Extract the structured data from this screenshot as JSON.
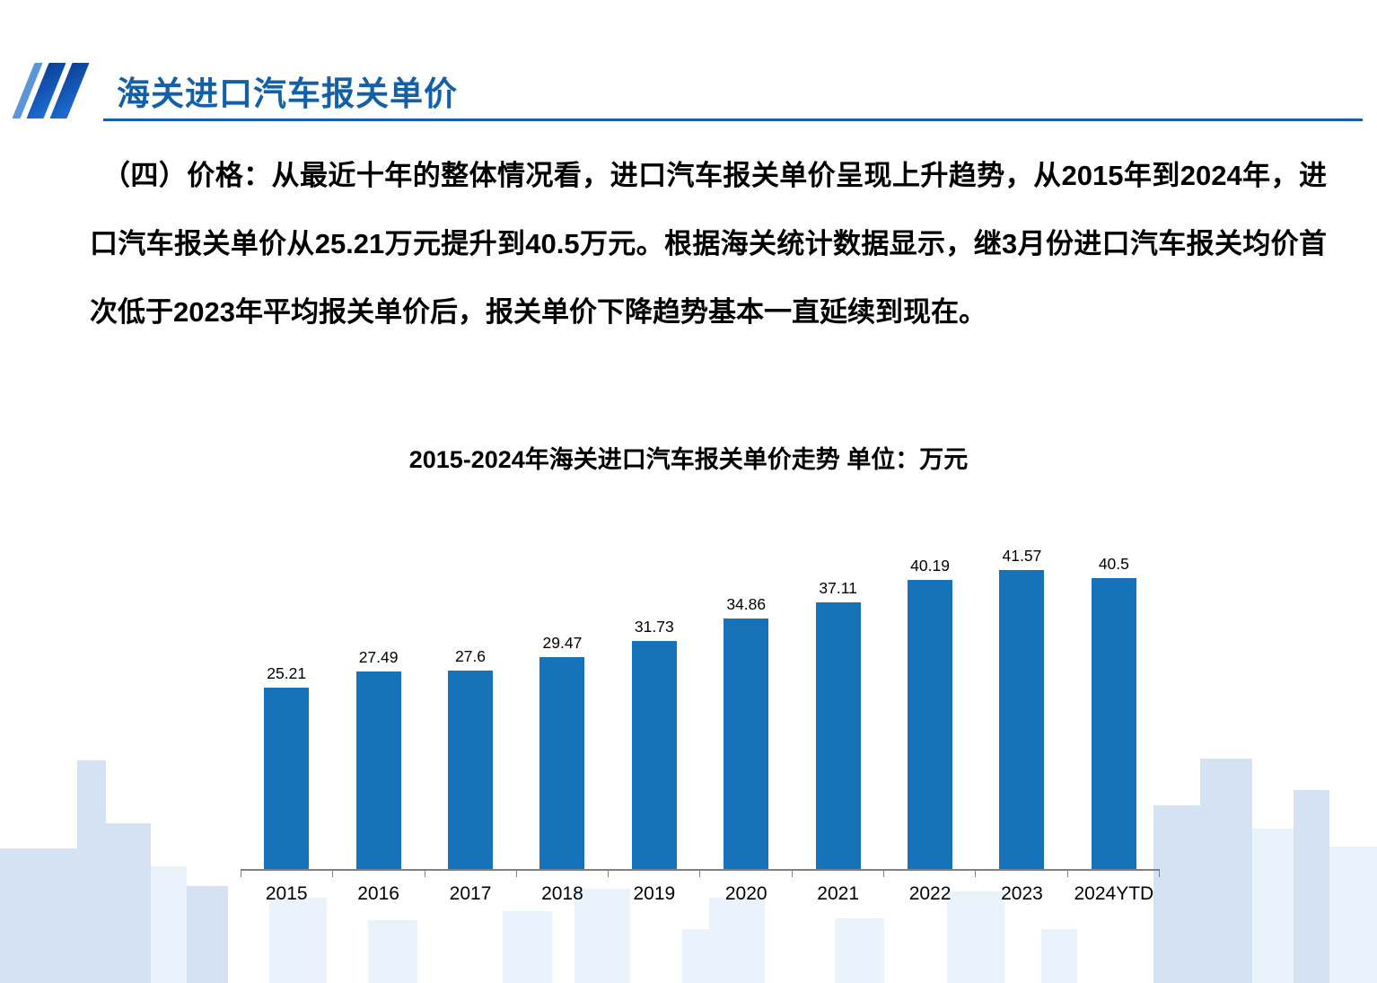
{
  "header": {
    "title": "海关进口汽车报关单价"
  },
  "body": {
    "paragraph": "（四）价格：从最近十年的整体情况看，进口汽车报关单价呈现上升趋势，从2015年到2024年，进口汽车报关单价从25.21万元提升到40.5万元。根据海关统计数据显示，继3月份进口汽车报关均价首次低于2023年平均报关单价后，报关单价下降趋势基本一直延续到现在。"
  },
  "chart_data": {
    "type": "bar",
    "title": "2015-2024年海关进口汽车报关单价走势  单位：万元",
    "categories": [
      "2015",
      "2016",
      "2017",
      "2018",
      "2019",
      "2020",
      "2021",
      "2022",
      "2023",
      "2024YTD"
    ],
    "values": [
      25.21,
      27.49,
      27.6,
      29.47,
      31.73,
      34.86,
      37.11,
      40.19,
      41.57,
      40.5
    ],
    "xlabel": "",
    "ylabel": "",
    "ylim": [
      0,
      45
    ],
    "grid": false,
    "legend": "none",
    "bar_color": "#1673b9"
  },
  "colors": {
    "accent": "#1560a8",
    "bar": "#1673b9",
    "skyline": "#b9d0ec"
  }
}
